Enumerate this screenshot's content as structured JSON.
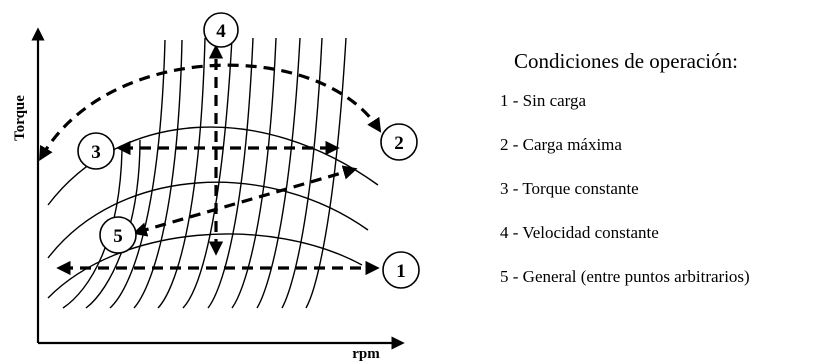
{
  "diagram": {
    "x_axis_label": "rpm",
    "y_axis_label": "Torque",
    "points": [
      {
        "id": "1",
        "label": "1"
      },
      {
        "id": "2",
        "label": "2"
      },
      {
        "id": "3",
        "label": "3"
      },
      {
        "id": "4",
        "label": "4"
      },
      {
        "id": "5",
        "label": "5"
      }
    ]
  },
  "legend": {
    "title": "Condiciones de operación:",
    "items": [
      "1 - Sin carga",
      "2 - Carga máxima",
      "3 - Torque constante",
      "4 - Velocidad constante",
      "5 - General (entre puntos arbitrarios)"
    ]
  },
  "colors": {
    "ink": "#000000",
    "background": "#ffffff"
  }
}
